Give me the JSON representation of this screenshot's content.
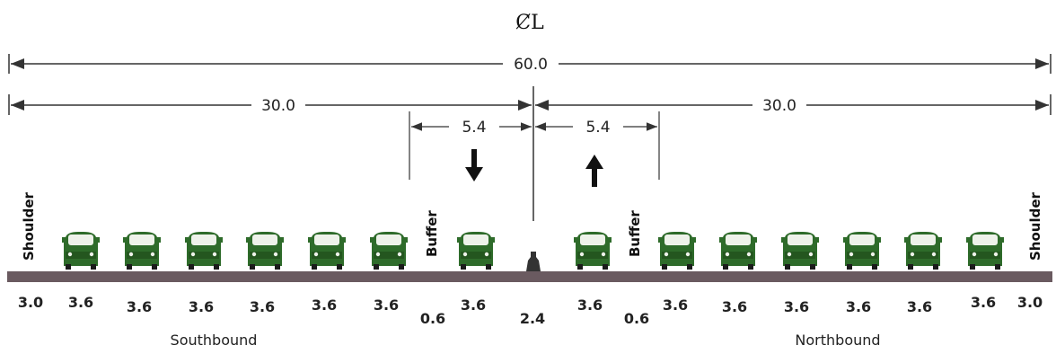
{
  "centerline_label": "ȻL",
  "dimensions": {
    "total": "60.0",
    "half_left": "30.0",
    "half_right": "30.0",
    "hov_left": "5.4",
    "hov_right": "5.4"
  },
  "side_labels": {
    "shoulder_left": "Shoulder",
    "shoulder_right": "Shoulder",
    "buffer_left": "Buffer",
    "buffer_right": "Buffer"
  },
  "directions": {
    "south": "Southbound",
    "north": "Northbound"
  },
  "lane_widths_left": [
    "3.0",
    "3.6",
    "3.6",
    "3.6",
    "3.6",
    "3.6",
    "3.6",
    "0.6",
    "3.6"
  ],
  "median_width": "2.4",
  "lane_widths_right": [
    "3.6",
    "0.6",
    "3.6",
    "3.6",
    "3.6",
    "3.6",
    "3.6",
    "3.6",
    "3.0"
  ],
  "colors": {
    "vehicle": "#2e6b2a",
    "pavement": "#6a5a60",
    "line": "#333333"
  },
  "icons": {
    "southbound_arrow": "arrow-down-icon",
    "northbound_arrow": "arrow-up-icon",
    "vehicle": "car-front-icon",
    "median_barrier": "jersey-barrier-icon"
  }
}
